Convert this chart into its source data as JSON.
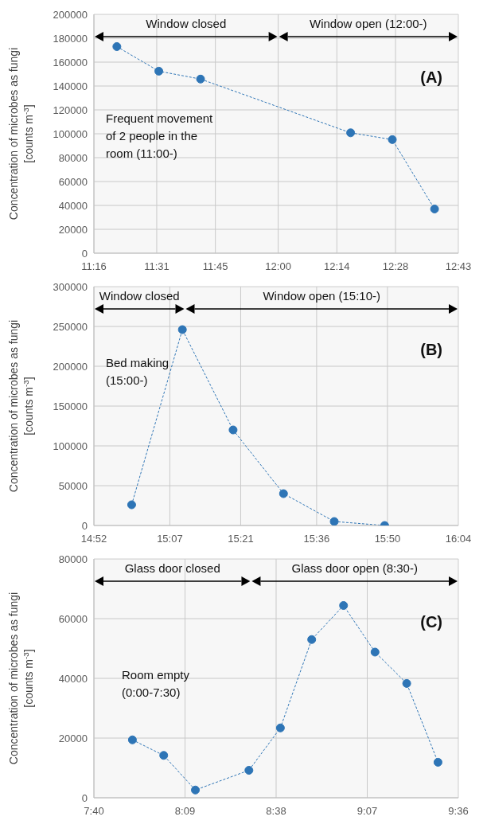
{
  "chart_data": [
    {
      "type": "line",
      "ylabel": "Concentration of microbes as fungi\n[counts m$^{-3}$]",
      "x": [
        11.358,
        11.525,
        11.691,
        12.288,
        12.454,
        12.622
      ],
      "series": [
        {
          "color": "#2e75b6",
          "values": [
            173000,
            152400,
            145800,
            100800,
            95100,
            37000
          ]
        }
      ],
      "xlim": [
        11.2667,
        12.7167
      ],
      "xticks": [
        {
          "value": 11.2667,
          "label": "11:16"
        },
        {
          "value": 11.5167,
          "label": "11:31"
        },
        {
          "value": 11.75,
          "label": "11:45"
        },
        {
          "value": 12.0,
          "label": "12:00"
        },
        {
          "value": 12.2333,
          "label": "12:14"
        },
        {
          "value": 12.4667,
          "label": "12:28"
        },
        {
          "value": 12.7167,
          "label": "12:43"
        }
      ],
      "ylim": [
        0,
        200000
      ],
      "yticks": [
        0,
        20000,
        40000,
        60000,
        80000,
        100000,
        120000,
        140000,
        160000,
        180000,
        200000
      ],
      "bands": [
        {
          "axis": "x",
          "from": 11.2667,
          "to": 12.0,
          "label": "Window closed"
        },
        {
          "axis": "x",
          "from": 12.0,
          "to": 12.7167,
          "label": "Window open (12:00-)"
        }
      ],
      "annotations": [
        "(A)",
        "Frequent movement\nof 2 people in the\nroom (11:00-)"
      ],
      "grid": true,
      "marker": "circle",
      "line_style": "dashed"
    },
    {
      "type": "line",
      "ylabel": "Concentration of microbes as fungi\n[counts m$^{-3}$]",
      "x": [
        14.991,
        15.158,
        15.325,
        15.491,
        15.658,
        15.824
      ],
      "series": [
        {
          "color": "#2e75b6",
          "values": [
            26000,
            246000,
            120000,
            40000,
            5000,
            0
          ]
        }
      ],
      "xlim": [
        14.8667,
        16.0667
      ],
      "xticks": [
        {
          "value": 14.8667,
          "label": "14:52"
        },
        {
          "value": 15.1167,
          "label": "15:07"
        },
        {
          "value": 15.35,
          "label": "15:21"
        },
        {
          "value": 15.6,
          "label": "15:36"
        },
        {
          "value": 15.8333,
          "label": "15:50"
        },
        {
          "value": 16.0667,
          "label": "16:04"
        }
      ],
      "ylim": [
        0,
        300000
      ],
      "yticks": [
        0,
        50000,
        100000,
        150000,
        200000,
        250000,
        300000
      ],
      "bands": [
        {
          "axis": "x",
          "from": 14.8667,
          "to": 15.1667,
          "label": "Window closed"
        },
        {
          "axis": "x",
          "from": 15.1667,
          "to": 16.0667,
          "label": "Window open (15:10-)"
        }
      ],
      "annotations": [
        "(B)",
        "Bed making\n(15:00-)"
      ],
      "grid": true,
      "marker": "circle",
      "line_style": "dashed"
    },
    {
      "type": "line",
      "ylabel": "Concentration of microbes as fungi\n[counts m$^{-3}$]",
      "x": [
        7.871,
        8.037,
        8.205,
        8.489,
        8.656,
        8.822,
        8.991,
        9.158,
        9.326,
        9.492
      ],
      "series": [
        {
          "color": "#2e75b6",
          "values": [
            19400,
            14200,
            2600,
            9200,
            23400,
            53000,
            64400,
            48800,
            38300,
            11900
          ]
        }
      ],
      "xlim": [
        7.6667,
        9.6
      ],
      "xticks": [
        {
          "value": 7.6667,
          "label": "7:40"
        },
        {
          "value": 8.15,
          "label": "8:09"
        },
        {
          "value": 8.6333,
          "label": "8:38"
        },
        {
          "value": 9.1167,
          "label": "9:07"
        },
        {
          "value": 9.6,
          "label": "9:36"
        }
      ],
      "ylim": [
        0,
        80000
      ],
      "yticks": [
        0,
        20000,
        40000,
        60000,
        80000
      ],
      "bands": [
        {
          "axis": "x",
          "from": 7.6667,
          "to": 8.5,
          "label": "Glass door closed"
        },
        {
          "axis": "x",
          "from": 8.5,
          "to": 9.6,
          "label": "Glass door open (8:30-)"
        }
      ],
      "annotations": [
        "(C)",
        "Room empty\n(0:00-7:30)"
      ],
      "grid": true,
      "marker": "circle",
      "line_style": "dashed"
    }
  ]
}
